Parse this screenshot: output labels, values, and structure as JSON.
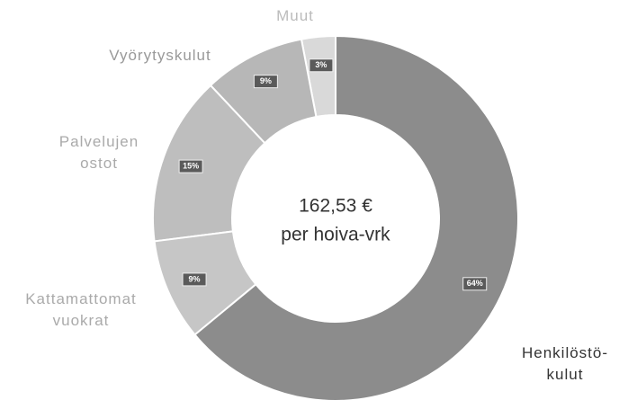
{
  "chart_data": {
    "type": "pie",
    "donut": true,
    "categories": [
      "Henkilöstö-\nkulut",
      "Kattamattomat\nvuokrat",
      "Palvelujen\nostot",
      "Vyörytyskulut",
      "Muut"
    ],
    "values": [
      64,
      9,
      15,
      9,
      3
    ],
    "value_labels": [
      "64%",
      "9%",
      "15%",
      "9%",
      "3%"
    ],
    "colors": [
      "#8c8c8c",
      "#c6c6c6",
      "#bebebe",
      "#b7b7b7",
      "#d9d9d9"
    ],
    "center_text": [
      "162,53 €",
      "per hoiva-vrk"
    ]
  }
}
